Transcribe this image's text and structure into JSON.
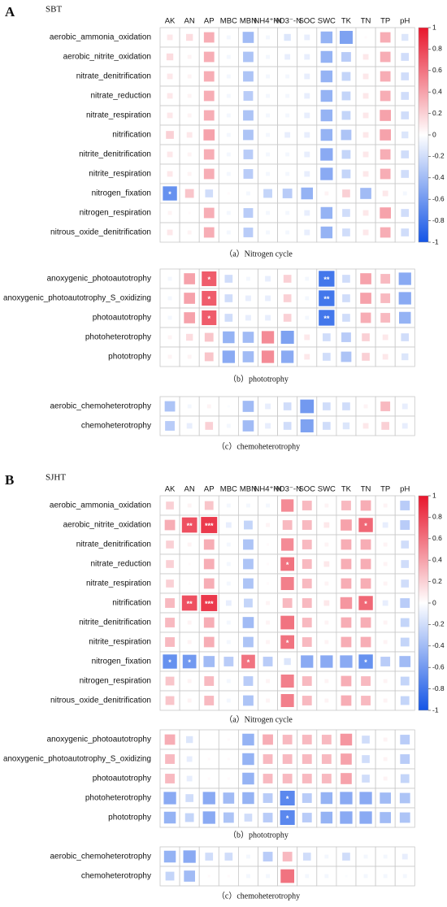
{
  "chart_data": [
    {
      "type": "heatmap",
      "panel": "A",
      "group": "SBT",
      "columns": [
        "AK",
        "AN",
        "AP",
        "MBC",
        "MBN",
        "NH4⁺-N",
        "NO3⁻-N",
        "SOC",
        "SWC",
        "TK",
        "TN",
        "TP",
        "pH"
      ],
      "colormap": [
        "#1455e6",
        "#ffffff",
        "#e8162c"
      ],
      "colorbar_lim": [
        -1,
        1
      ],
      "colorbar_ticks": [
        1,
        0.8,
        0.6,
        0.4,
        0.2,
        0,
        -0.2,
        -0.4,
        -0.6,
        -0.8,
        -1
      ],
      "caption": "（a）Nitrogen cycle",
      "rows": [
        "aerobic_ammonia_oxidation",
        "aerobic_nitrite_oxidation",
        "nitrate_denitrification",
        "nitrate_reduction",
        "nitrate_respiration",
        "nitrification",
        "nitrite_denitrification",
        "nitrite_respiration",
        "nitrogen_fixation",
        "nitrogen_respiration",
        "nitrous_oxide_denitrification"
      ],
      "values": [
        [
          0.1,
          0.15,
          0.35,
          -0.05,
          -0.4,
          -0.05,
          -0.15,
          -0.1,
          -0.45,
          -0.55,
          0.02,
          0.35,
          -0.15
        ],
        [
          0.15,
          0.05,
          0.35,
          -0.05,
          -0.35,
          -0.05,
          -0.1,
          -0.1,
          -0.45,
          -0.3,
          0.1,
          0.35,
          -0.2
        ],
        [
          0.1,
          0.05,
          0.35,
          -0.05,
          -0.35,
          -0.05,
          -0.05,
          -0.1,
          -0.45,
          -0.25,
          0.1,
          0.35,
          -0.2
        ],
        [
          0.1,
          0.05,
          0.35,
          -0.05,
          -0.3,
          -0.05,
          -0.05,
          -0.1,
          -0.45,
          -0.25,
          0.1,
          0.35,
          -0.2
        ],
        [
          0.1,
          0.05,
          0.35,
          -0.05,
          -0.35,
          -0.05,
          -0.05,
          -0.1,
          -0.45,
          -0.25,
          0.1,
          0.4,
          -0.2
        ],
        [
          0.2,
          0.1,
          0.4,
          -0.05,
          -0.35,
          -0.05,
          -0.1,
          -0.1,
          -0.45,
          -0.35,
          0.1,
          0.4,
          -0.15
        ],
        [
          0.1,
          0.05,
          0.35,
          -0.05,
          -0.3,
          -0.05,
          -0.05,
          -0.1,
          -0.5,
          -0.25,
          0.1,
          0.35,
          -0.2
        ],
        [
          0.1,
          0.05,
          0.35,
          -0.05,
          -0.3,
          -0.05,
          -0.05,
          -0.1,
          -0.5,
          -0.25,
          0.1,
          0.35,
          -0.2
        ],
        [
          -0.65,
          0.25,
          -0.2,
          0.02,
          -0.05,
          -0.25,
          -0.3,
          -0.45,
          0.05,
          0.2,
          -0.4,
          0.1,
          -0.05
        ],
        [
          0.05,
          0.02,
          0.35,
          -0.05,
          -0.3,
          -0.05,
          -0.05,
          -0.1,
          -0.45,
          -0.2,
          0.1,
          0.4,
          -0.2
        ],
        [
          0.1,
          0.05,
          0.35,
          -0.05,
          -0.3,
          -0.05,
          -0.05,
          -0.1,
          -0.45,
          -0.2,
          0.1,
          0.35,
          -0.2
        ]
      ],
      "annotations": [
        {
          "row": "nitrogen_fixation",
          "col": "AK",
          "label": "*"
        }
      ]
    },
    {
      "type": "heatmap",
      "caption": "（b）phototrophy",
      "rows": [
        "anoxygenic_photoautotrophy",
        "anoxygenic_photoautotrophy_S_oxidizing",
        "photoautotrophy",
        "photoheterotrophy",
        "phototrophy"
      ],
      "values": [
        [
          -0.05,
          0.4,
          0.7,
          -0.2,
          -0.05,
          -0.1,
          0.2,
          -0.05,
          -0.8,
          -0.2,
          0.4,
          0.3,
          -0.5
        ],
        [
          -0.05,
          0.4,
          0.7,
          -0.2,
          -0.1,
          -0.1,
          0.2,
          -0.05,
          -0.8,
          -0.2,
          0.4,
          0.3,
          -0.5
        ],
        [
          -0.05,
          0.4,
          0.7,
          -0.2,
          -0.1,
          -0.1,
          0.2,
          -0.05,
          -0.8,
          -0.2,
          0.35,
          0.3,
          -0.45
        ],
        [
          0.05,
          0.15,
          0.25,
          -0.45,
          -0.4,
          0.5,
          -0.55,
          0.1,
          -0.2,
          -0.3,
          0.2,
          0.1,
          -0.2
        ],
        [
          0.05,
          0.05,
          0.25,
          -0.5,
          -0.4,
          0.5,
          -0.5,
          0.1,
          -0.2,
          -0.35,
          0.2,
          0.1,
          -0.15
        ]
      ],
      "annotations": [
        {
          "row": "anoxygenic_photoautotrophy",
          "col": "AP",
          "label": "*"
        },
        {
          "row": "anoxygenic_photoautotrophy",
          "col": "SWC",
          "label": "**"
        },
        {
          "row": "anoxygenic_photoautotrophy_S_oxidizing",
          "col": "AP",
          "label": "*"
        },
        {
          "row": "anoxygenic_photoautotrophy_S_oxidizing",
          "col": "SWC",
          "label": "**"
        },
        {
          "row": "photoautotrophy",
          "col": "AP",
          "label": "*"
        },
        {
          "row": "photoautotrophy",
          "col": "SWC",
          "label": "**"
        }
      ]
    },
    {
      "type": "heatmap",
      "caption": "（c）chemoheterotrophy",
      "rows": [
        "aerobic_chemoheterotrophy",
        "chemoheterotrophy"
      ],
      "values": [
        [
          -0.35,
          -0.05,
          0.05,
          -0.02,
          -0.4,
          -0.1,
          -0.2,
          -0.6,
          -0.2,
          -0.2,
          0.05,
          0.3,
          -0.1
        ],
        [
          -0.3,
          -0.1,
          0.2,
          -0.05,
          -0.4,
          -0.1,
          -0.2,
          -0.55,
          -0.2,
          -0.15,
          0.1,
          0.2,
          -0.1
        ]
      ],
      "annotations": []
    },
    {
      "type": "heatmap",
      "panel": "B",
      "group": "SJHT",
      "columns": [
        "AK",
        "AN",
        "AP",
        "MBC",
        "MBN",
        "NH4⁺-N",
        "NO3⁻-N",
        "SOC",
        "SWC",
        "TK",
        "TN",
        "TP",
        "pH"
      ],
      "colormap": [
        "#1455e6",
        "#ffffff",
        "#e8162c"
      ],
      "colorbar_lim": [
        -1,
        1
      ],
      "colorbar_ticks": [
        1,
        0.8,
        0.6,
        0.4,
        0.2,
        0,
        -0.2,
        -0.4,
        -0.6,
        -0.8,
        -1
      ],
      "caption": "（a）Nitrogen cycle",
      "rows": [
        "aerobic_ammonia_oxidation",
        "aerobic_nitrite_oxidation",
        "nitrate_denitrification",
        "nitrate_reduction",
        "nitrate_respiration",
        "nitrification",
        "nitrite_denitrification",
        "nitrite_respiration",
        "nitrogen_fixation",
        "nitrogen_respiration",
        "nitrous_oxide_denitrification"
      ],
      "values": [
        [
          0.2,
          0.05,
          0.25,
          -0.05,
          -0.05,
          -0.05,
          0.5,
          0.3,
          0.05,
          0.3,
          0.35,
          0.05,
          -0.3
        ],
        [
          0.35,
          0.75,
          0.85,
          -0.1,
          -0.25,
          0.05,
          0.3,
          0.3,
          0.1,
          0.4,
          0.65,
          -0.1,
          -0.3
        ],
        [
          0.2,
          0.05,
          0.35,
          -0.05,
          -0.35,
          0.02,
          0.5,
          0.3,
          0.05,
          0.35,
          0.35,
          0.05,
          -0.2
        ],
        [
          0.2,
          0.02,
          0.35,
          -0.05,
          -0.35,
          0.02,
          0.6,
          0.3,
          0.1,
          0.35,
          0.35,
          0.05,
          -0.2
        ],
        [
          0.2,
          0.02,
          0.35,
          -0.05,
          -0.35,
          0.02,
          0.55,
          0.3,
          0.05,
          0.35,
          0.35,
          0.05,
          -0.2
        ],
        [
          0.3,
          0.75,
          0.85,
          -0.1,
          -0.25,
          0.05,
          0.3,
          0.3,
          0.1,
          0.45,
          0.65,
          -0.1,
          -0.3
        ],
        [
          0.3,
          0.05,
          0.35,
          -0.05,
          -0.4,
          0.05,
          0.6,
          0.3,
          0.05,
          0.35,
          0.35,
          0.05,
          -0.25
        ],
        [
          0.3,
          0.05,
          0.35,
          -0.05,
          -0.35,
          0.05,
          0.6,
          0.3,
          0.05,
          0.35,
          0.35,
          0.05,
          -0.25
        ],
        [
          -0.65,
          -0.6,
          -0.4,
          -0.3,
          0.6,
          -0.3,
          -0.15,
          -0.5,
          -0.5,
          -0.5,
          -0.65,
          -0.3,
          -0.4
        ],
        [
          0.25,
          0.05,
          0.3,
          -0.05,
          -0.3,
          0.05,
          0.55,
          0.3,
          0.05,
          0.35,
          0.3,
          0.05,
          -0.25
        ],
        [
          0.25,
          0.05,
          0.3,
          -0.05,
          -0.35,
          0.05,
          0.55,
          0.3,
          0.05,
          0.35,
          0.3,
          0.05,
          -0.25
        ]
      ],
      "annotations": [
        {
          "row": "aerobic_nitrite_oxidation",
          "col": "AN",
          "label": "**"
        },
        {
          "row": "aerobic_nitrite_oxidation",
          "col": "AP",
          "label": "***"
        },
        {
          "row": "aerobic_nitrite_oxidation",
          "col": "TN",
          "label": "*"
        },
        {
          "row": "nitrate_reduction",
          "col": "NO3⁻-N",
          "label": "*"
        },
        {
          "row": "nitrification",
          "col": "AN",
          "label": "**"
        },
        {
          "row": "nitrification",
          "col": "AP",
          "label": "***"
        },
        {
          "row": "nitrification",
          "col": "TN",
          "label": "*"
        },
        {
          "row": "nitrite_respiration",
          "col": "NO3⁻-N",
          "label": "*"
        },
        {
          "row": "nitrogen_fixation",
          "col": "AK",
          "label": "*"
        },
        {
          "row": "nitrogen_fixation",
          "col": "AN",
          "label": "*"
        },
        {
          "row": "nitrogen_fixation",
          "col": "MBN",
          "label": "*"
        },
        {
          "row": "nitrogen_fixation",
          "col": "TN",
          "label": "*"
        }
      ]
    },
    {
      "type": "heatmap",
      "caption": "（b）phototrophy",
      "rows": [
        "anoxygenic_photoautotrophy",
        "anoxygenic_photoautotrophy_S_oxidizing",
        "photoautotrophy",
        "photoheterotrophy",
        "phototrophy"
      ],
      "values": [
        [
          0.35,
          -0.15,
          0,
          0.02,
          -0.45,
          0.35,
          0.3,
          0.3,
          0.3,
          0.45,
          -0.2,
          0.05,
          -0.3
        ],
        [
          0.3,
          -0.1,
          0.02,
          0.02,
          -0.45,
          0.3,
          0.3,
          0.3,
          0.3,
          0.4,
          -0.2,
          0.05,
          -0.3
        ],
        [
          0.3,
          -0.1,
          0.02,
          0.02,
          -0.45,
          0.3,
          0.3,
          0.3,
          0.3,
          0.4,
          -0.2,
          0.05,
          -0.25
        ],
        [
          -0.5,
          -0.2,
          -0.5,
          -0.4,
          -0.45,
          -0.3,
          -0.7,
          -0.3,
          -0.45,
          -0.5,
          -0.5,
          -0.4,
          -0.35
        ],
        [
          -0.45,
          -0.25,
          -0.5,
          -0.35,
          -0.2,
          -0.3,
          -0.7,
          -0.3,
          -0.45,
          -0.5,
          -0.5,
          -0.4,
          -0.35
        ]
      ],
      "annotations": [
        {
          "row": "photoheterotrophy",
          "col": "NO3⁻-N",
          "label": "*"
        },
        {
          "row": "phototrophy",
          "col": "NO3⁻-N",
          "label": "*"
        }
      ]
    },
    {
      "type": "heatmap",
      "caption": "（c）chemoheterotrophy",
      "rows": [
        "aerobic_chemoheterotrophy",
        "chemoheterotrophy"
      ],
      "values": [
        [
          -0.45,
          -0.5,
          -0.2,
          -0.2,
          -0.05,
          -0.3,
          0.3,
          -0.2,
          -0.05,
          -0.2,
          -0.05,
          -0.05,
          -0.1
        ],
        [
          -0.25,
          -0.4,
          0.02,
          0.02,
          -0.05,
          -0.05,
          0.6,
          -0.05,
          -0.05,
          -0.02,
          -0.05,
          -0.05,
          -0.05
        ]
      ],
      "annotations": []
    }
  ]
}
